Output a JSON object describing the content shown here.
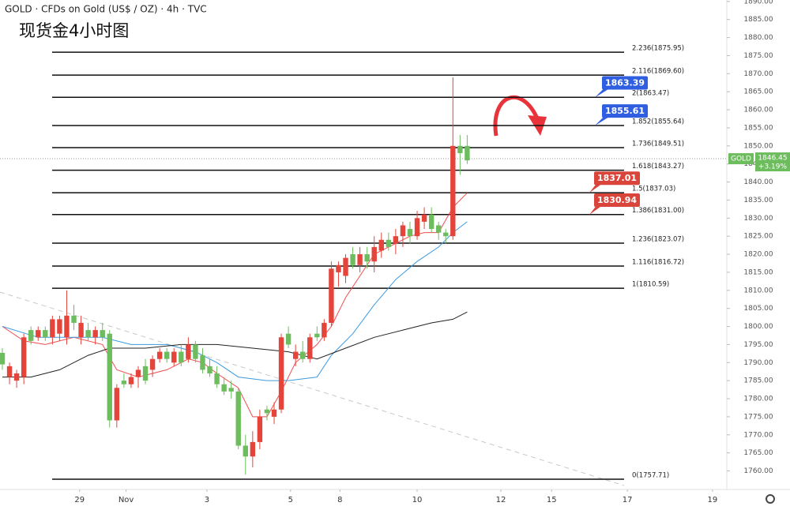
{
  "chart_data": {
    "type": "candlestick",
    "header": "GOLD · CFDs on Gold (US$ / OZ) · 4h · TVC",
    "title": "现货金4小时图",
    "up_color": "#e5443b",
    "down_color": "#6dbd5e",
    "ylim": [
      1757.4,
      1890.4
    ],
    "xlim": [
      -0.3,
      101
    ],
    "yticks": [
      {
        "value": 1760,
        "label": "1760.00"
      },
      {
        "value": 1765,
        "label": "1765.00"
      },
      {
        "value": 1770,
        "label": "1770.00"
      },
      {
        "value": 1775,
        "label": "1775.00"
      },
      {
        "value": 1780,
        "label": "1780.00"
      },
      {
        "value": 1785,
        "label": "1785.00"
      },
      {
        "value": 1790,
        "label": "1790.00"
      },
      {
        "value": 1795,
        "label": "1795.00"
      },
      {
        "value": 1800,
        "label": "1800.00"
      },
      {
        "value": 1805,
        "label": "1805.00"
      },
      {
        "value": 1810,
        "label": "1810.00"
      },
      {
        "value": 1815,
        "label": "1815.00"
      },
      {
        "value": 1820,
        "label": "1820.00"
      },
      {
        "value": 1825,
        "label": "1825.00"
      },
      {
        "value": 1830,
        "label": "1830.00"
      },
      {
        "value": 1835,
        "label": "1835.00"
      },
      {
        "value": 1840,
        "label": "1840.00"
      },
      {
        "value": 1845,
        "label": "1845.00"
      },
      {
        "value": 1850,
        "label": "1850.00"
      },
      {
        "value": 1855,
        "label": "1855.00"
      },
      {
        "value": 1860,
        "label": "1860.00"
      },
      {
        "value": 1865,
        "label": "1865.00"
      },
      {
        "value": 1870,
        "label": "1870.00"
      },
      {
        "value": 1875,
        "label": "1875.00"
      },
      {
        "value": 1880,
        "label": "1880.00"
      },
      {
        "value": 1885,
        "label": "1885.00"
      },
      {
        "value": 1890,
        "label": "1890.00"
      }
    ],
    "xticks": [
      {
        "value": 10.8,
        "label": "29"
      },
      {
        "value": 17.3,
        "label": "Nov"
      },
      {
        "value": 28.6,
        "label": "3"
      },
      {
        "value": 40.3,
        "label": "5"
      },
      {
        "value": 47.2,
        "label": "8"
      },
      {
        "value": 58,
        "label": "10"
      },
      {
        "value": 69.7,
        "label": "12"
      },
      {
        "value": 76.8,
        "label": "15"
      },
      {
        "value": 87.4,
        "label": "17"
      },
      {
        "value": 99.3,
        "label": "19"
      }
    ],
    "candles": [
      [
        1792.7,
        1794,
        1788,
        1789.5
      ],
      [
        1786,
        1790,
        1784,
        1789
      ],
      [
        1785,
        1788,
        1783,
        1787
      ],
      [
        1786,
        1798,
        1784,
        1797
      ],
      [
        1799,
        1800,
        1795,
        1796
      ],
      [
        1797,
        1800,
        1796,
        1799
      ],
      [
        1799,
        1800,
        1796,
        1797
      ],
      [
        1797,
        1803,
        1795,
        1802
      ],
      [
        1798,
        1803,
        1796,
        1802
      ],
      [
        1797,
        1810,
        1795,
        1803
      ],
      [
        1803,
        1806,
        1799,
        1801
      ],
      [
        1797,
        1803,
        1795,
        1801
      ],
      [
        1799,
        1801,
        1796,
        1797
      ],
      [
        1797,
        1800,
        1795,
        1799
      ],
      [
        1799,
        1801,
        1796,
        1797
      ],
      [
        1798,
        1799,
        1772,
        1774
      ],
      [
        1774,
        1784,
        1772,
        1783
      ],
      [
        1785,
        1787,
        1783,
        1784
      ],
      [
        1784,
        1787,
        1783,
        1786
      ],
      [
        1786,
        1789,
        1783,
        1788
      ],
      [
        1789,
        1791,
        1784,
        1785
      ],
      [
        1788,
        1792,
        1786,
        1791
      ],
      [
        1791,
        1794,
        1790,
        1793
      ],
      [
        1793,
        1794,
        1790,
        1791
      ],
      [
        1790,
        1794,
        1789,
        1793
      ],
      [
        1793,
        1795,
        1789,
        1790
      ],
      [
        1791,
        1797,
        1790,
        1795
      ],
      [
        1795,
        1796,
        1790,
        1791
      ],
      [
        1792,
        1794,
        1787,
        1788
      ],
      [
        1789,
        1791,
        1786,
        1787
      ],
      [
        1787,
        1789,
        1783,
        1784
      ],
      [
        1784,
        1786,
        1781,
        1782
      ],
      [
        1783,
        1785,
        1780,
        1782
      ],
      [
        1782,
        1783,
        1766,
        1767
      ],
      [
        1767,
        1770,
        1759,
        1764
      ],
      [
        1764,
        1771,
        1761,
        1768
      ],
      [
        1768,
        1777,
        1766,
        1775
      ],
      [
        1777,
        1778,
        1774,
        1776
      ],
      [
        1775,
        1779,
        1773,
        1777
      ],
      [
        1777,
        1798,
        1776,
        1797
      ],
      [
        1798,
        1800,
        1794,
        1795
      ],
      [
        1791,
        1795,
        1789,
        1793
      ],
      [
        1793,
        1796,
        1790,
        1791
      ],
      [
        1791,
        1798,
        1790,
        1797
      ],
      [
        1798,
        1800,
        1796,
        1797
      ],
      [
        1797,
        1802,
        1796,
        1801
      ],
      [
        1801,
        1818,
        1800,
        1816
      ],
      [
        1815,
        1818,
        1811,
        1817
      ],
      [
        1814,
        1820,
        1812,
        1819
      ],
      [
        1820,
        1822,
        1816,
        1817
      ],
      [
        1817,
        1822,
        1815,
        1820
      ],
      [
        1820,
        1822,
        1816,
        1818
      ],
      [
        1818,
        1825,
        1815,
        1822
      ],
      [
        1821,
        1826,
        1819,
        1824
      ],
      [
        1824,
        1826,
        1821,
        1822
      ],
      [
        1823,
        1827,
        1820,
        1825
      ],
      [
        1825,
        1829,
        1822,
        1828
      ],
      [
        1827,
        1829,
        1823,
        1825
      ],
      [
        1825,
        1832,
        1824,
        1830
      ],
      [
        1829,
        1833,
        1827,
        1831
      ],
      [
        1831,
        1833,
        1826,
        1827
      ],
      [
        1828,
        1829,
        1824,
        1826
      ],
      [
        1826,
        1827,
        1823,
        1825
      ],
      [
        1825,
        1869,
        1824,
        1850
      ],
      [
        1850,
        1853,
        1842,
        1848
      ],
      [
        1850,
        1853,
        1845,
        1846
      ]
    ],
    "lines": [
      {
        "color": "#ef4d4d",
        "x": [
          0,
          3,
          6,
          10,
          14,
          16,
          19,
          23,
          26,
          28,
          30,
          33,
          35,
          37,
          39,
          41,
          44,
          46,
          48,
          50,
          52,
          55,
          57,
          59,
          61,
          63,
          65
        ],
        "values": [
          1800,
          1796,
          1795,
          1797,
          1795,
          1788,
          1786,
          1788,
          1791,
          1790,
          1787,
          1783,
          1775,
          1775,
          1782,
          1790,
          1795,
          1800,
          1808,
          1814,
          1820,
          1823,
          1825,
          1826,
          1826,
          1833,
          1837
        ]
      },
      {
        "color": "#3b9ae1",
        "x": [
          0,
          5,
          10,
          14,
          18,
          23,
          27,
          30,
          33,
          37,
          40,
          44,
          46,
          49,
          52,
          55,
          58,
          61,
          63,
          65
        ],
        "values": [
          1800,
          1797,
          1797,
          1797,
          1795,
          1795,
          1793,
          1790,
          1786,
          1785,
          1785,
          1786,
          1792,
          1798,
          1806,
          1813,
          1818,
          1822,
          1826,
          1829
        ]
      },
      {
        "color": "#222222",
        "x": [
          0,
          4,
          8,
          12,
          15,
          20,
          25,
          30,
          35,
          40,
          44,
          48,
          52,
          56,
          60,
          63,
          65
        ],
        "values": [
          1786,
          1786,
          1788,
          1792,
          1794,
          1794,
          1795,
          1795,
          1794,
          1793,
          1791,
          1794,
          1797,
          1799,
          1801,
          1802,
          1804
        ]
      }
    ],
    "fib_levels": [
      {
        "value": 1875.95,
        "label": "2.236(1875.95)"
      },
      {
        "value": 1869.6,
        "label": "2.116(1869.60)"
      },
      {
        "value": 1863.47,
        "label": "2(1863.47)"
      },
      {
        "value": 1855.64,
        "label": "1.852(1855.64)"
      },
      {
        "value": 1849.51,
        "label": "1.736(1849.51)"
      },
      {
        "value": 1843.27,
        "label": "1.618(1843.27)"
      },
      {
        "value": 1837.03,
        "label": "1.5(1837.03)"
      },
      {
        "value": 1831.0,
        "label": "1.386(1831.00)"
      },
      {
        "value": 1823.07,
        "label": "1.236(1823.07)"
      },
      {
        "value": 1816.72,
        "label": "1.116(1816.72)"
      },
      {
        "value": 1810.59,
        "label": "1(1810.59)"
      },
      {
        "value": 1757.71,
        "label": "0(1757.71)"
      }
    ],
    "callouts": [
      {
        "value": 1863.39,
        "label": "1863.39",
        "color": "#2f5fe0"
      },
      {
        "value": 1855.61,
        "label": "1855.61",
        "color": "#2f5fe0"
      },
      {
        "value": 1837.01,
        "label": "1837.01",
        "color": "#d9443b"
      },
      {
        "value": 1830.94,
        "label": "1830.94",
        "color": "#d9443b"
      }
    ],
    "last_price": {
      "symbol": "GOLD",
      "value": 1846.45,
      "label": "1846.45",
      "change": "+3.19%"
    }
  }
}
